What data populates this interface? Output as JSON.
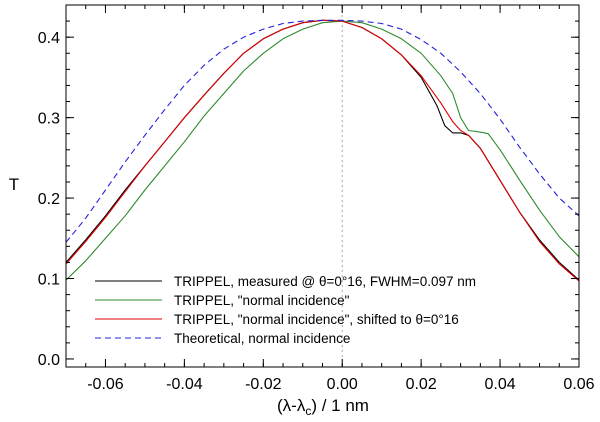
{
  "chart_data": {
    "type": "line",
    "xlabel": "(λ-λc) / 1 nm",
    "xlabel_main": "(λ-λ",
    "xlabel_sub": "c",
    "xlabel_tail": ") / 1 nm",
    "ylabel": "T",
    "xlim": [
      -0.07,
      0.06
    ],
    "ylim": [
      -0.01,
      0.44
    ],
    "x_ticks": [
      -0.06,
      -0.04,
      -0.02,
      0.0,
      0.02,
      0.04,
      0.06
    ],
    "x_tick_labels": [
      "-0.06",
      "-0.04",
      "-0.02",
      "0.00",
      "0.02",
      "0.04",
      "0.06"
    ],
    "y_ticks": [
      0.0,
      0.1,
      0.2,
      0.3,
      0.4
    ],
    "y_tick_labels": [
      "0.0",
      "0.1",
      "0.2",
      "0.3",
      "0.4"
    ],
    "vertical_reference_line_x": 0.0,
    "series": [
      {
        "name": "measured",
        "label": "TRIPPEL, measured @ θ=0°16, FWHM=0.097 nm",
        "color": "#000000",
        "style": "solid",
        "x": [
          -0.07,
          -0.065,
          -0.06,
          -0.055,
          -0.05,
          -0.045,
          -0.04,
          -0.035,
          -0.03,
          -0.025,
          -0.02,
          -0.015,
          -0.01,
          -0.005,
          0.0,
          0.005,
          0.01,
          0.015,
          0.02,
          0.024,
          0.026,
          0.028,
          0.03,
          0.032,
          0.035,
          0.04,
          0.045,
          0.05,
          0.055,
          0.06
        ],
        "y": [
          0.12,
          0.148,
          0.178,
          0.21,
          0.24,
          0.27,
          0.3,
          0.328,
          0.355,
          0.38,
          0.398,
          0.41,
          0.418,
          0.421,
          0.42,
          0.412,
          0.398,
          0.378,
          0.35,
          0.315,
          0.29,
          0.281,
          0.281,
          0.278,
          0.262,
          0.222,
          0.182,
          0.148,
          0.12,
          0.098
        ]
      },
      {
        "name": "normal",
        "label": "TRIPPEL, \"normal incidence\"",
        "color": "#2e8b2e",
        "style": "solid",
        "x": [
          -0.07,
          -0.065,
          -0.06,
          -0.055,
          -0.05,
          -0.045,
          -0.04,
          -0.035,
          -0.03,
          -0.025,
          -0.02,
          -0.015,
          -0.01,
          -0.005,
          0.0,
          0.005,
          0.01,
          0.015,
          0.02,
          0.025,
          0.028,
          0.03,
          0.032,
          0.035,
          0.037,
          0.04,
          0.045,
          0.05,
          0.055,
          0.06
        ],
        "y": [
          0.098,
          0.122,
          0.15,
          0.178,
          0.21,
          0.24,
          0.27,
          0.302,
          0.33,
          0.358,
          0.38,
          0.398,
          0.41,
          0.418,
          0.42,
          0.418,
          0.41,
          0.398,
          0.38,
          0.352,
          0.33,
          0.3,
          0.284,
          0.282,
          0.28,
          0.26,
          0.222,
          0.185,
          0.152,
          0.127
        ]
      },
      {
        "name": "shifted",
        "label": "TRIPPEL, \"normal incidence\", shifted to θ=0°16",
        "color": "#e00000",
        "style": "solid",
        "x": [
          -0.07,
          -0.065,
          -0.06,
          -0.055,
          -0.05,
          -0.045,
          -0.04,
          -0.035,
          -0.03,
          -0.025,
          -0.02,
          -0.015,
          -0.01,
          -0.005,
          0.0,
          0.005,
          0.01,
          0.015,
          0.02,
          0.025,
          0.028,
          0.03,
          0.032,
          0.035,
          0.04,
          0.045,
          0.05,
          0.055,
          0.06
        ],
        "y": [
          0.118,
          0.146,
          0.176,
          0.208,
          0.24,
          0.27,
          0.3,
          0.328,
          0.355,
          0.38,
          0.398,
          0.41,
          0.418,
          0.421,
          0.42,
          0.412,
          0.398,
          0.378,
          0.352,
          0.318,
          0.295,
          0.284,
          0.278,
          0.262,
          0.222,
          0.182,
          0.146,
          0.118,
          0.097
        ]
      },
      {
        "name": "theoretical",
        "label": "Theoretical, normal incidence",
        "color": "#2222dd",
        "style": "dashed",
        "x": [
          -0.07,
          -0.065,
          -0.06,
          -0.055,
          -0.05,
          -0.045,
          -0.04,
          -0.035,
          -0.03,
          -0.025,
          -0.02,
          -0.015,
          -0.01,
          -0.005,
          0.0,
          0.005,
          0.01,
          0.015,
          0.02,
          0.025,
          0.03,
          0.035,
          0.04,
          0.045,
          0.05,
          0.055,
          0.06
        ],
        "y": [
          0.145,
          0.175,
          0.21,
          0.245,
          0.278,
          0.31,
          0.34,
          0.365,
          0.385,
          0.4,
          0.41,
          0.417,
          0.42,
          0.421,
          0.421,
          0.42,
          0.417,
          0.41,
          0.397,
          0.38,
          0.357,
          0.33,
          0.298,
          0.263,
          0.23,
          0.2,
          0.178
        ]
      }
    ]
  }
}
